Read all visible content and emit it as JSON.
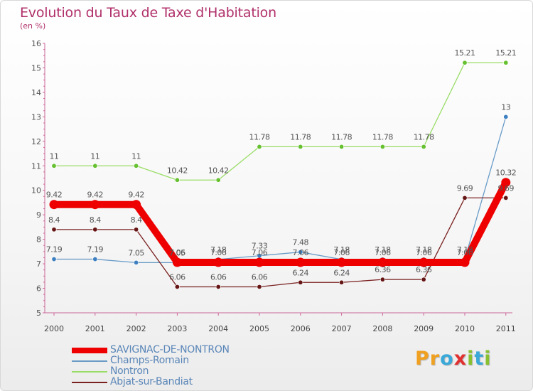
{
  "header": {
    "title": "Evolution du Taux de Taxe d'Habitation",
    "subtitle": "(en %)"
  },
  "logo": {
    "text": "Proxiti",
    "letters": [
      {
        "ch": "P",
        "color": "#f0a020"
      },
      {
        "ch": "r",
        "color": "#f0a020"
      },
      {
        "ch": "o",
        "color": "#3aa8d8"
      },
      {
        "ch": "x",
        "color": "#e03030"
      },
      {
        "ch": "i",
        "color": "#88c030"
      },
      {
        "ch": "t",
        "color": "#3aa8d8"
      },
      {
        "ch": "i",
        "color": "#88c030"
      }
    ]
  },
  "chart_data": {
    "type": "line",
    "title": "Evolution du Taux de Taxe d'Habitation",
    "ylabel": "(en %)",
    "xlabel": "",
    "x": [
      "2000",
      "2001",
      "2002",
      "2003",
      "2004",
      "2005",
      "2006",
      "2007",
      "2008",
      "2009",
      "2010",
      "2011"
    ],
    "ylim": [
      5,
      16
    ],
    "yticks": [
      5,
      6,
      7,
      8,
      9,
      10,
      11,
      12,
      13,
      14,
      15,
      16
    ],
    "grid": false,
    "legend_position": "bottom-left",
    "series": [
      {
        "name": "SAVIGNAC-DE-NONTRON",
        "color": "#ee0000",
        "marker": "#ee0000",
        "thick": true,
        "values": [
          9.42,
          9.42,
          9.42,
          7.06,
          7.06,
          7.06,
          7.06,
          7.06,
          7.06,
          7.06,
          7.06,
          10.32
        ],
        "labels": [
          "9.42",
          "9.42",
          "9.42",
          "7.06",
          "7.06",
          "7.06",
          "7.06",
          "7.06",
          "7.06",
          "7.06",
          "7.06",
          "10.32"
        ]
      },
      {
        "name": "Champs-Romain",
        "color": "#6a9cc8",
        "marker": "#3d7fc0",
        "thick": false,
        "values": [
          7.19,
          7.19,
          7.05,
          7.05,
          7.18,
          7.33,
          7.48,
          7.18,
          7.18,
          7.18,
          7.18,
          13
        ],
        "labels": [
          "7.19",
          "7.19",
          "7.05",
          "7.05",
          "7.18",
          "7.33",
          "7.48",
          "7.18",
          "7.18",
          "7.18",
          "7.18",
          "13"
        ]
      },
      {
        "name": "Nontron",
        "color": "#99dd66",
        "marker": "#66c030",
        "thick": false,
        "values": [
          11,
          11,
          11,
          10.42,
          10.42,
          11.78,
          11.78,
          11.78,
          11.78,
          11.78,
          15.21,
          15.21
        ],
        "labels": [
          "11",
          "11",
          "11",
          "10.42",
          "10.42",
          "11.78",
          "11.78",
          "11.78",
          "11.78",
          "11.78",
          "15.21",
          "15.21"
        ]
      },
      {
        "name": "Abjat-sur-Bandiat",
        "color": "#7a2020",
        "marker": "#661515",
        "thick": false,
        "values": [
          8.4,
          8.4,
          8.4,
          6.06,
          6.06,
          6.06,
          6.24,
          6.24,
          6.36,
          6.36,
          9.69,
          9.69
        ],
        "labels": [
          "8.4",
          "8.4",
          "8.4",
          "6.06",
          "6.06",
          "6.06",
          "6.24",
          "6.24",
          "6.36",
          "6.36",
          "9.69",
          "9.69"
        ]
      }
    ]
  }
}
